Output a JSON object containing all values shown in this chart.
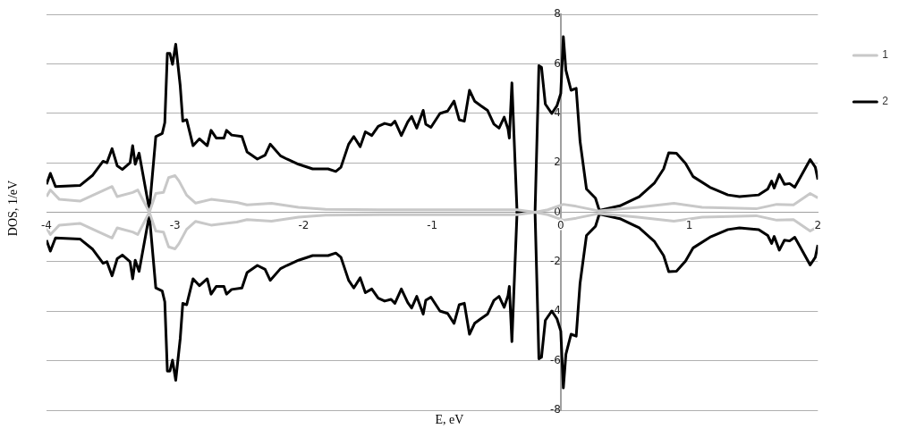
{
  "chart_data": {
    "type": "line",
    "xlabel": "E, eV",
    "ylabel": "DOS, 1/eV",
    "xlim": [
      -4,
      2
    ],
    "xticks": [
      -4,
      -3,
      -2,
      -1,
      0,
      1,
      2
    ],
    "ylim": [
      -8,
      8
    ],
    "yticks": [
      -8,
      -6,
      -4,
      -2,
      0,
      2,
      4,
      6,
      8
    ],
    "grid": "y",
    "legend": "right",
    "marker": "none",
    "line_style": "solid",
    "series": [
      {
        "name": "1",
        "color": "#c8c8c8",
        "x": [
          -4.0,
          -3.97,
          -3.9,
          -3.74,
          -3.49,
          -3.45,
          -3.33,
          -3.29,
          -3.2,
          -3.15,
          -3.09,
          -3.05,
          -3.0,
          -2.97,
          -2.91,
          -2.84,
          -2.72,
          -2.52,
          -2.44,
          -2.25,
          -2.04,
          -1.83,
          -1.4,
          -0.8,
          -0.34,
          -0.2,
          -0.1,
          0.02,
          0.12,
          0.3,
          0.6,
          0.88,
          1.1,
          1.52,
          1.68,
          1.81,
          1.94,
          2.0
        ],
        "values": [
          0.63,
          0.9,
          0.52,
          0.45,
          1.04,
          0.63,
          0.8,
          0.9,
          0.0,
          0.76,
          0.8,
          1.4,
          1.48,
          1.27,
          0.69,
          0.37,
          0.52,
          0.4,
          0.3,
          0.36,
          0.2,
          0.12,
          0.1,
          0.1,
          0.1,
          0.0,
          0.1,
          0.32,
          0.24,
          0.05,
          0.2,
          0.36,
          0.2,
          0.14,
          0.32,
          0.3,
          0.76,
          0.58
        ]
      },
      {
        "color": "#c8c8c8",
        "x": [
          -4.0,
          -3.97,
          -3.9,
          -3.74,
          -3.49,
          -3.45,
          -3.33,
          -3.29,
          -3.2,
          -3.15,
          -3.09,
          -3.05,
          -3.0,
          -2.97,
          -2.91,
          -2.84,
          -2.72,
          -2.52,
          -2.44,
          -2.25,
          -2.04,
          -1.83,
          -1.4,
          -0.8,
          -0.34,
          -0.2,
          -0.1,
          0.02,
          0.12,
          0.3,
          0.6,
          0.88,
          1.1,
          1.52,
          1.68,
          1.81,
          1.94,
          2.0
        ],
        "values": [
          -0.63,
          -0.9,
          -0.52,
          -0.45,
          -1.04,
          -0.63,
          -0.8,
          -0.9,
          0.0,
          -0.76,
          -0.8,
          -1.4,
          -1.48,
          -1.27,
          -0.69,
          -0.37,
          -0.52,
          -0.4,
          -0.3,
          -0.36,
          -0.2,
          -0.12,
          -0.1,
          -0.1,
          -0.1,
          0.0,
          -0.1,
          -0.32,
          -0.24,
          -0.05,
          -0.2,
          -0.36,
          -0.2,
          -0.14,
          -0.32,
          -0.3,
          -0.76,
          -0.58
        ]
      },
      {
        "name": "2",
        "color": "#000000",
        "x": [
          -4.0,
          -3.97,
          -3.93,
          -3.74,
          -3.64,
          -3.56,
          -3.53,
          -3.49,
          -3.45,
          -3.41,
          -3.35,
          -3.33,
          -3.31,
          -3.28,
          -3.2,
          -3.15,
          -3.1,
          -3.08,
          -3.06,
          -3.04,
          -3.02,
          -2.995,
          -2.96,
          -2.94,
          -2.91,
          -2.86,
          -2.81,
          -2.75,
          -2.72,
          -2.68,
          -2.62,
          -2.6,
          -2.56,
          -2.48,
          -2.44,
          -2.36,
          -2.3,
          -2.26,
          -2.18,
          -2.13,
          -2.04,
          -1.93,
          -1.81,
          -1.75,
          -1.71,
          -1.65,
          -1.61,
          -1.56,
          -1.52,
          -1.47,
          -1.42,
          -1.37,
          -1.32,
          -1.29,
          -1.24,
          -1.19,
          -1.16,
          -1.12,
          -1.07,
          -1.05,
          -1.01,
          -0.94,
          -0.88,
          -0.83,
          -0.79,
          -0.75,
          -0.71,
          -0.67,
          -0.62,
          -0.57,
          -0.52,
          -0.48,
          -0.44,
          -0.41,
          -0.4,
          -0.38,
          -0.34,
          -0.2,
          -0.17,
          -0.15,
          -0.12,
          -0.07,
          -0.03,
          0.0,
          0.02,
          0.04,
          0.08,
          0.12,
          0.15,
          0.2,
          0.27,
          0.3,
          0.46,
          0.61,
          0.73,
          0.8,
          0.84,
          0.9,
          0.97,
          1.03,
          1.16,
          1.3,
          1.39,
          1.54,
          1.61,
          1.64,
          1.66,
          1.7,
          1.74,
          1.78,
          1.82,
          1.86,
          1.94,
          1.98,
          2.0
        ],
        "values": [
          1.13,
          1.57,
          1.04,
          1.08,
          1.5,
          2.06,
          2.0,
          2.57,
          1.88,
          1.73,
          2.0,
          2.69,
          1.94,
          2.39,
          0.1,
          3.06,
          3.18,
          3.62,
          6.42,
          6.42,
          5.98,
          6.79,
          5.11,
          3.68,
          3.74,
          2.69,
          2.97,
          2.69,
          3.31,
          3.0,
          3.0,
          3.31,
          3.12,
          3.06,
          2.44,
          2.15,
          2.31,
          2.75,
          2.28,
          2.15,
          1.94,
          1.75,
          1.75,
          1.65,
          1.82,
          2.75,
          3.06,
          2.65,
          3.25,
          3.1,
          3.47,
          3.59,
          3.52,
          3.68,
          3.1,
          3.65,
          3.87,
          3.4,
          4.12,
          3.56,
          3.43,
          3.99,
          4.09,
          4.49,
          3.74,
          3.68,
          4.93,
          4.49,
          4.3,
          4.12,
          3.56,
          3.4,
          3.84,
          3.37,
          3.0,
          5.23,
          0.0,
          0.0,
          5.92,
          5.86,
          4.37,
          3.99,
          4.3,
          4.8,
          7.1,
          5.74,
          4.93,
          5.01,
          2.87,
          0.94,
          0.57,
          0.07,
          0.26,
          0.63,
          1.19,
          1.75,
          2.4,
          2.38,
          1.98,
          1.44,
          1.01,
          0.7,
          0.63,
          0.7,
          0.94,
          1.26,
          0.98,
          1.53,
          1.13,
          1.16,
          1.01,
          1.38,
          2.13,
          1.82,
          1.32
        ]
      },
      {
        "color": "#000000",
        "x": [
          -4.0,
          -3.97,
          -3.93,
          -3.74,
          -3.64,
          -3.56,
          -3.53,
          -3.49,
          -3.45,
          -3.41,
          -3.35,
          -3.33,
          -3.31,
          -3.28,
          -3.2,
          -3.15,
          -3.1,
          -3.08,
          -3.06,
          -3.04,
          -3.02,
          -2.995,
          -2.96,
          -2.94,
          -2.91,
          -2.86,
          -2.81,
          -2.75,
          -2.72,
          -2.68,
          -2.62,
          -2.6,
          -2.56,
          -2.48,
          -2.44,
          -2.36,
          -2.3,
          -2.26,
          -2.18,
          -2.13,
          -2.04,
          -1.93,
          -1.81,
          -1.75,
          -1.71,
          -1.65,
          -1.61,
          -1.56,
          -1.52,
          -1.47,
          -1.42,
          -1.37,
          -1.32,
          -1.29,
          -1.24,
          -1.19,
          -1.16,
          -1.12,
          -1.07,
          -1.05,
          -1.01,
          -0.94,
          -0.88,
          -0.83,
          -0.79,
          -0.75,
          -0.71,
          -0.67,
          -0.62,
          -0.57,
          -0.52,
          -0.48,
          -0.44,
          -0.41,
          -0.4,
          -0.38,
          -0.34,
          -0.2,
          -0.17,
          -0.15,
          -0.12,
          -0.07,
          -0.03,
          0.0,
          0.02,
          0.04,
          0.08,
          0.12,
          0.15,
          0.2,
          0.27,
          0.3,
          0.46,
          0.61,
          0.73,
          0.8,
          0.84,
          0.9,
          0.97,
          1.03,
          1.16,
          1.3,
          1.39,
          1.54,
          1.61,
          1.64,
          1.66,
          1.7,
          1.74,
          1.78,
          1.82,
          1.86,
          1.94,
          1.98,
          2.0
        ],
        "values": [
          -1.13,
          -1.57,
          -1.04,
          -1.08,
          -1.5,
          -2.06,
          -2.0,
          -2.57,
          -1.88,
          -1.73,
          -2.0,
          -2.69,
          -1.94,
          -2.39,
          -0.1,
          -3.06,
          -3.18,
          -3.62,
          -6.42,
          -6.42,
          -5.98,
          -6.79,
          -5.11,
          -3.68,
          -3.74,
          -2.69,
          -2.97,
          -2.69,
          -3.31,
          -3.0,
          -3.0,
          -3.31,
          -3.12,
          -3.06,
          -2.44,
          -2.15,
          -2.31,
          -2.75,
          -2.28,
          -2.15,
          -1.94,
          -1.75,
          -1.75,
          -1.65,
          -1.82,
          -2.75,
          -3.06,
          -2.65,
          -3.25,
          -3.1,
          -3.47,
          -3.59,
          -3.52,
          -3.68,
          -3.1,
          -3.65,
          -3.87,
          -3.4,
          -4.12,
          -3.56,
          -3.43,
          -3.99,
          -4.09,
          -4.49,
          -3.74,
          -3.68,
          -4.93,
          -4.49,
          -4.3,
          -4.12,
          -3.56,
          -3.4,
          -3.84,
          -3.37,
          -3.0,
          -5.23,
          0.0,
          0.0,
          -5.92,
          -5.86,
          -4.37,
          -3.99,
          -4.3,
          -4.8,
          -7.1,
          -5.74,
          -4.93,
          -5.01,
          -2.87,
          -0.94,
          -0.57,
          -0.07,
          -0.26,
          -0.63,
          -1.19,
          -1.75,
          -2.4,
          -2.38,
          -1.98,
          -1.44,
          -1.01,
          -0.7,
          -0.63,
          -0.7,
          -0.94,
          -1.26,
          -0.98,
          -1.53,
          -1.13,
          -1.16,
          -1.01,
          -1.38,
          -2.13,
          -1.82,
          -1.32
        ]
      }
    ]
  }
}
